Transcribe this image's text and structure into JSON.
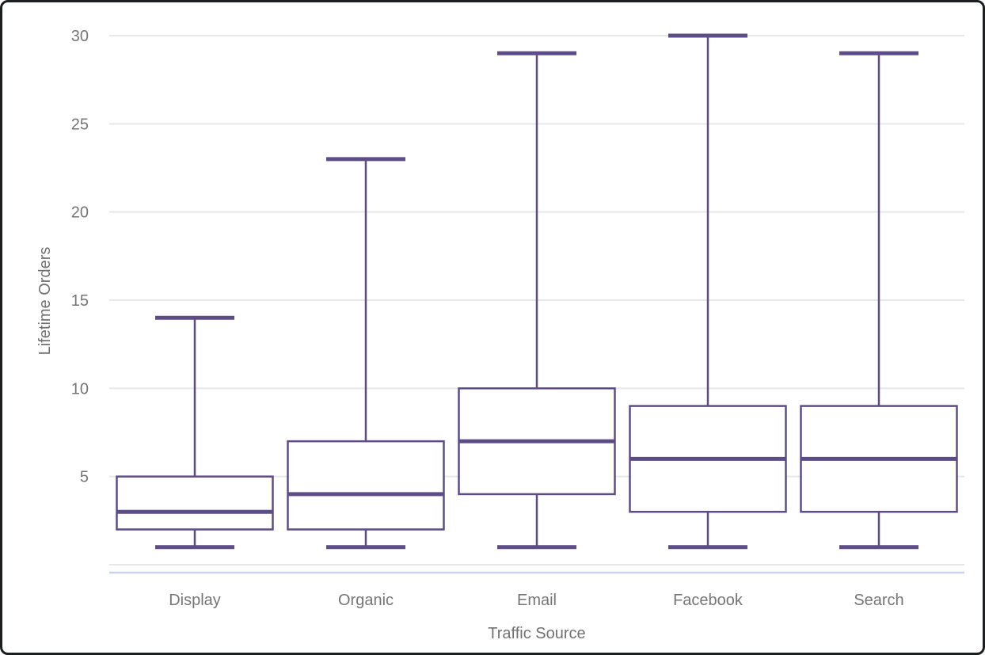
{
  "window": {
    "background": "#ffffff",
    "frame_border_color": "#1b1f20"
  },
  "chart_data": {
    "type": "boxplot",
    "title": "",
    "xlabel": "Traffic Source",
    "ylabel": "Lifetime Orders",
    "categories": [
      "Display",
      "Organic",
      "Email",
      "Facebook",
      "Search"
    ],
    "boxes": [
      {
        "category": "Display",
        "min": 1,
        "q1": 2,
        "median": 3,
        "q3": 5,
        "max": 14
      },
      {
        "category": "Organic",
        "min": 1,
        "q1": 2,
        "median": 4,
        "q3": 7,
        "max": 23
      },
      {
        "category": "Email",
        "min": 1,
        "q1": 4,
        "median": 7,
        "q3": 10,
        "max": 29
      },
      {
        "category": "Facebook",
        "min": 1,
        "q1": 3,
        "median": 6,
        "q3": 9,
        "max": 30
      },
      {
        "category": "Search",
        "min": 1,
        "q1": 3,
        "median": 6,
        "q3": 9,
        "max": 29
      }
    ],
    "ylim": [
      0,
      30
    ],
    "yticks": [
      5,
      10,
      15,
      20,
      25,
      30
    ],
    "grid": true,
    "legend": "none",
    "colors": {
      "box_stroke": "#5E4C87",
      "box_fill": "#FFFFFF",
      "gridline": "#E8E8E8",
      "axis_baseline": "#C9D4EA",
      "tick_label": "#757575",
      "axis_title": "#717171"
    }
  }
}
